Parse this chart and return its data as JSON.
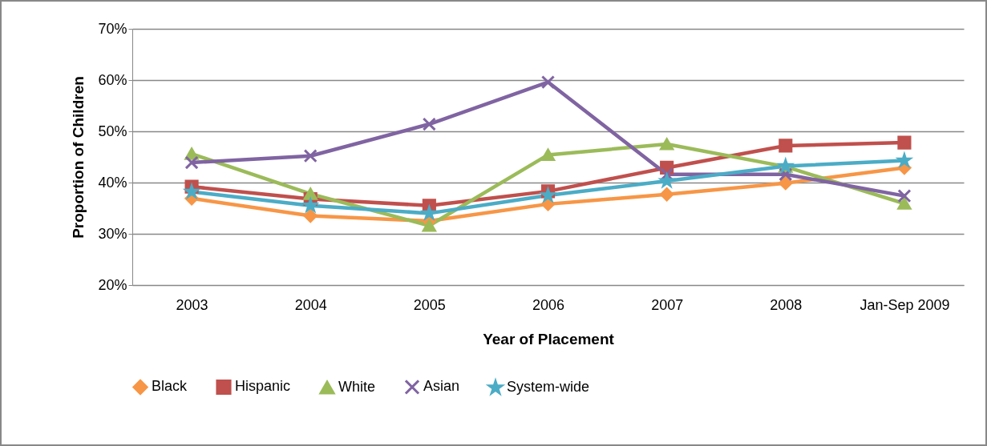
{
  "chart_data": {
    "type": "line",
    "xlabel": "Year of Placement",
    "ylabel": "Proportion of Children",
    "categories": [
      "2003",
      "2004",
      "2005",
      "2006",
      "2007",
      "2008",
      "Jan-Sep 2009"
    ],
    "series": [
      {
        "name": "Black",
        "color": "#f79646",
        "marker": "diamond",
        "values": [
          36.9,
          33.5,
          32.5,
          35.8,
          37.7,
          39.9,
          42.9
        ]
      },
      {
        "name": "Hispanic",
        "color": "#c0504d",
        "marker": "square",
        "values": [
          39.2,
          36.8,
          35.5,
          38.3,
          42.9,
          47.2,
          47.8
        ]
      },
      {
        "name": "White",
        "color": "#9bbb59",
        "marker": "triangle",
        "values": [
          45.6,
          37.8,
          31.6,
          45.4,
          47.5,
          43.1,
          35.9
        ]
      },
      {
        "name": "Asian",
        "color": "#8064a2",
        "marker": "cross",
        "values": [
          43.9,
          45.2,
          51.4,
          59.6,
          41.6,
          41.6,
          37.4
        ]
      },
      {
        "name": "System-wide",
        "color": "#4bacc6",
        "marker": "star",
        "values": [
          38.2,
          35.5,
          34.0,
          37.5,
          40.3,
          43.2,
          44.3
        ]
      }
    ],
    "ylim": [
      20,
      70
    ],
    "yticks": [
      {
        "value": 20,
        "label": "20%"
      },
      {
        "value": 30,
        "label": "30%"
      },
      {
        "value": 40,
        "label": "40%"
      },
      {
        "value": 50,
        "label": "50%"
      },
      {
        "value": 60,
        "label": "60%"
      },
      {
        "value": 70,
        "label": "70%"
      }
    ],
    "grid": "y",
    "legend": "bottom",
    "line_style": "solid"
  }
}
